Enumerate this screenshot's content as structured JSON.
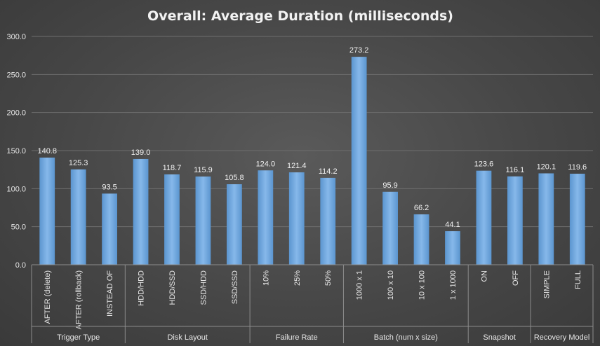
{
  "chart_data": {
    "type": "bar",
    "title": "Overall: Average Duration (milliseconds)",
    "xlabel": "",
    "ylabel": "",
    "ylim": [
      0,
      300
    ],
    "ytick_step": 50,
    "grid": true,
    "legend": "none",
    "bar_color": "#6fa8dc",
    "groups": [
      {
        "name": "Trigger Type",
        "categories": [
          "AFTER (delete)",
          "AFTER (rollback)",
          "INSTEAD OF"
        ],
        "values": [
          140.8,
          125.3,
          93.5
        ]
      },
      {
        "name": "Disk Layout",
        "categories": [
          "HDD/HDD",
          "HDD/SSD",
          "SSD/HDD",
          "SSD/SSD"
        ],
        "values": [
          139.0,
          118.7,
          115.9,
          105.8
        ]
      },
      {
        "name": "Failure Rate",
        "categories": [
          "10%",
          "25%",
          "50%"
        ],
        "values": [
          124.0,
          121.4,
          114.2
        ]
      },
      {
        "name": "Batch (num x size)",
        "categories": [
          "1000 x 1",
          "100 x 10",
          "10 x 100",
          "1 x 1000"
        ],
        "values": [
          273.2,
          95.9,
          66.2,
          44.1
        ]
      },
      {
        "name": "Snapshot",
        "categories": [
          "ON",
          "OFF"
        ],
        "values": [
          123.6,
          116.1
        ]
      },
      {
        "name": "Recovery Model",
        "categories": [
          "SIMPLE",
          "FULL"
        ],
        "values": [
          120.1,
          119.6
        ]
      }
    ]
  }
}
